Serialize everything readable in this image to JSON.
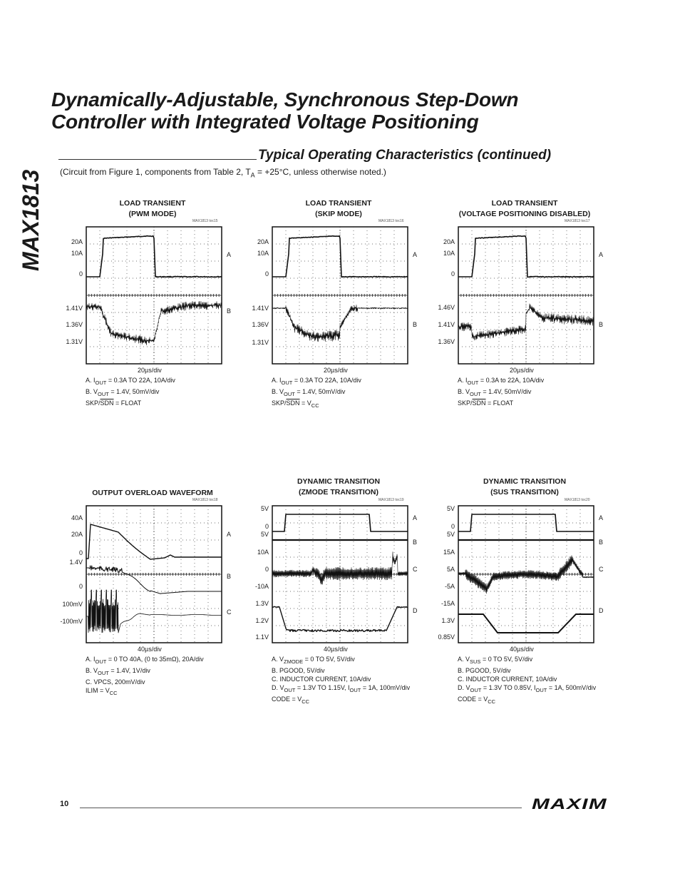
{
  "header": {
    "title_line1": "Dynamically-Adjustable, Synchronous Step-Down",
    "title_line2": "Controller with Integrated Voltage Positioning",
    "side_label": "MAX1813",
    "section_title": "Typical Operating Characteristics (continued)",
    "circuit_note": "(Circuit from Figure 1, components from Table 2, T_A = +25°C, unless otherwise noted.)"
  },
  "graphs": [
    {
      "id": "toc15",
      "title_lines": [
        "LOAD TRANSIENT",
        "(PWM MODE)"
      ],
      "code": "MAX1813 toc15",
      "y_labels": [
        "20A",
        "10A",
        "0",
        "1.41V",
        "1.36V",
        "1.31V"
      ],
      "channels": [
        "A",
        "B"
      ],
      "x_label": "20µs/div",
      "legend": [
        "A. I_OUT = 0.3A TO 22A, 10A/div",
        "B. V_OUT = 1.4V, 50mV/div",
        "SKP/SDN = FLOAT"
      ]
    },
    {
      "id": "toc16",
      "title_lines": [
        "LOAD TRANSIENT",
        "(SKIP MODE)"
      ],
      "code": "MAX1813 toc16",
      "y_labels": [
        "20A",
        "10A",
        "0",
        "1.41V",
        "1.36V",
        "1.31V"
      ],
      "channels": [
        "A",
        "B"
      ],
      "x_label": "20µs/div",
      "legend": [
        "A. I_OUT = 0.3A TO 22A, 10A/div",
        "B. V_OUT = 1.4V, 50mV/div",
        "SKP/SDN = V_CC"
      ]
    },
    {
      "id": "toc17",
      "title_lines": [
        "LOAD TRANSIENT",
        "(VOLTAGE POSITIONING DISABLED)"
      ],
      "code": "MAX1813 toc17",
      "y_labels": [
        "20A",
        "10A",
        "0",
        "1.46V",
        "1.41V",
        "1.36V"
      ],
      "channels": [
        "A",
        "B"
      ],
      "x_label": "20µs/div",
      "legend": [
        "A. I_OUT = 0.3A to 22A, 10A/div",
        "B. V_OUT = 1.4V, 50mV/div",
        "SKP/SDN = FLOAT"
      ]
    },
    {
      "id": "toc18",
      "title_lines": [
        "OUTPUT OVERLOAD WAVEFORM"
      ],
      "code": "MAX1813 toc18",
      "y_labels": [
        "40A",
        "20A",
        "0",
        "1.4V",
        "0",
        "100mV",
        "-100mV"
      ],
      "channels": [
        "A",
        "B",
        "C"
      ],
      "x_label": "40µs/div",
      "legend": [
        "A. I_OUT = 0 TO 40A, (0 to 35mΩ), 20A/div",
        "B. V_OUT = 1.4V, 1V/div",
        "C. VPCS, 200mV/div",
        "ILIM = V_CC"
      ]
    },
    {
      "id": "toc19",
      "title_lines": [
        "DYNAMIC TRANSITION",
        "(ZMODE TRANSITION)"
      ],
      "code": "MAX1813 toc19",
      "y_labels": [
        "5V",
        "0",
        "5V",
        "10A",
        "0",
        "-10A",
        "1.3V",
        "1.2V",
        "1.1V"
      ],
      "channels": [
        "A",
        "B",
        "C",
        "D"
      ],
      "x_label": "40µs/div",
      "legend": [
        "A. V_ZMODE = 0 TO 5V, 5V/div",
        "B. PGOOD, 5V/div",
        "C. INDUCTOR CURRENT, 10A/div",
        "D. V_OUT = 1.3V TO 1.15V, I_OUT = 1A, 100mV/div",
        "CODE = V_CC"
      ]
    },
    {
      "id": "toc20",
      "title_lines": [
        "DYNAMIC TRANSITION",
        "(SUS TRANSITION)"
      ],
      "code": "MAX1813 toc20",
      "y_labels": [
        "5V",
        "0",
        "5V",
        "15A",
        "5A",
        "-5A",
        "-15A",
        "1.3V",
        "0.85V"
      ],
      "channels": [
        "A",
        "B",
        "C",
        "D"
      ],
      "x_label": "40µs/div",
      "legend": [
        "A. V_SUS = 0 TO 5V, 5V/div",
        "B. PGOOD, 5V/div",
        "C. INDUCTOR CURRENT, 10A/div",
        "D. V_OUT = 1.3V TO 0.85V, I_OUT = 1A, 500mV/div",
        "CODE = V_CC"
      ]
    }
  ],
  "footer": {
    "page_number": "10",
    "logo_text": "MAXIM"
  }
}
